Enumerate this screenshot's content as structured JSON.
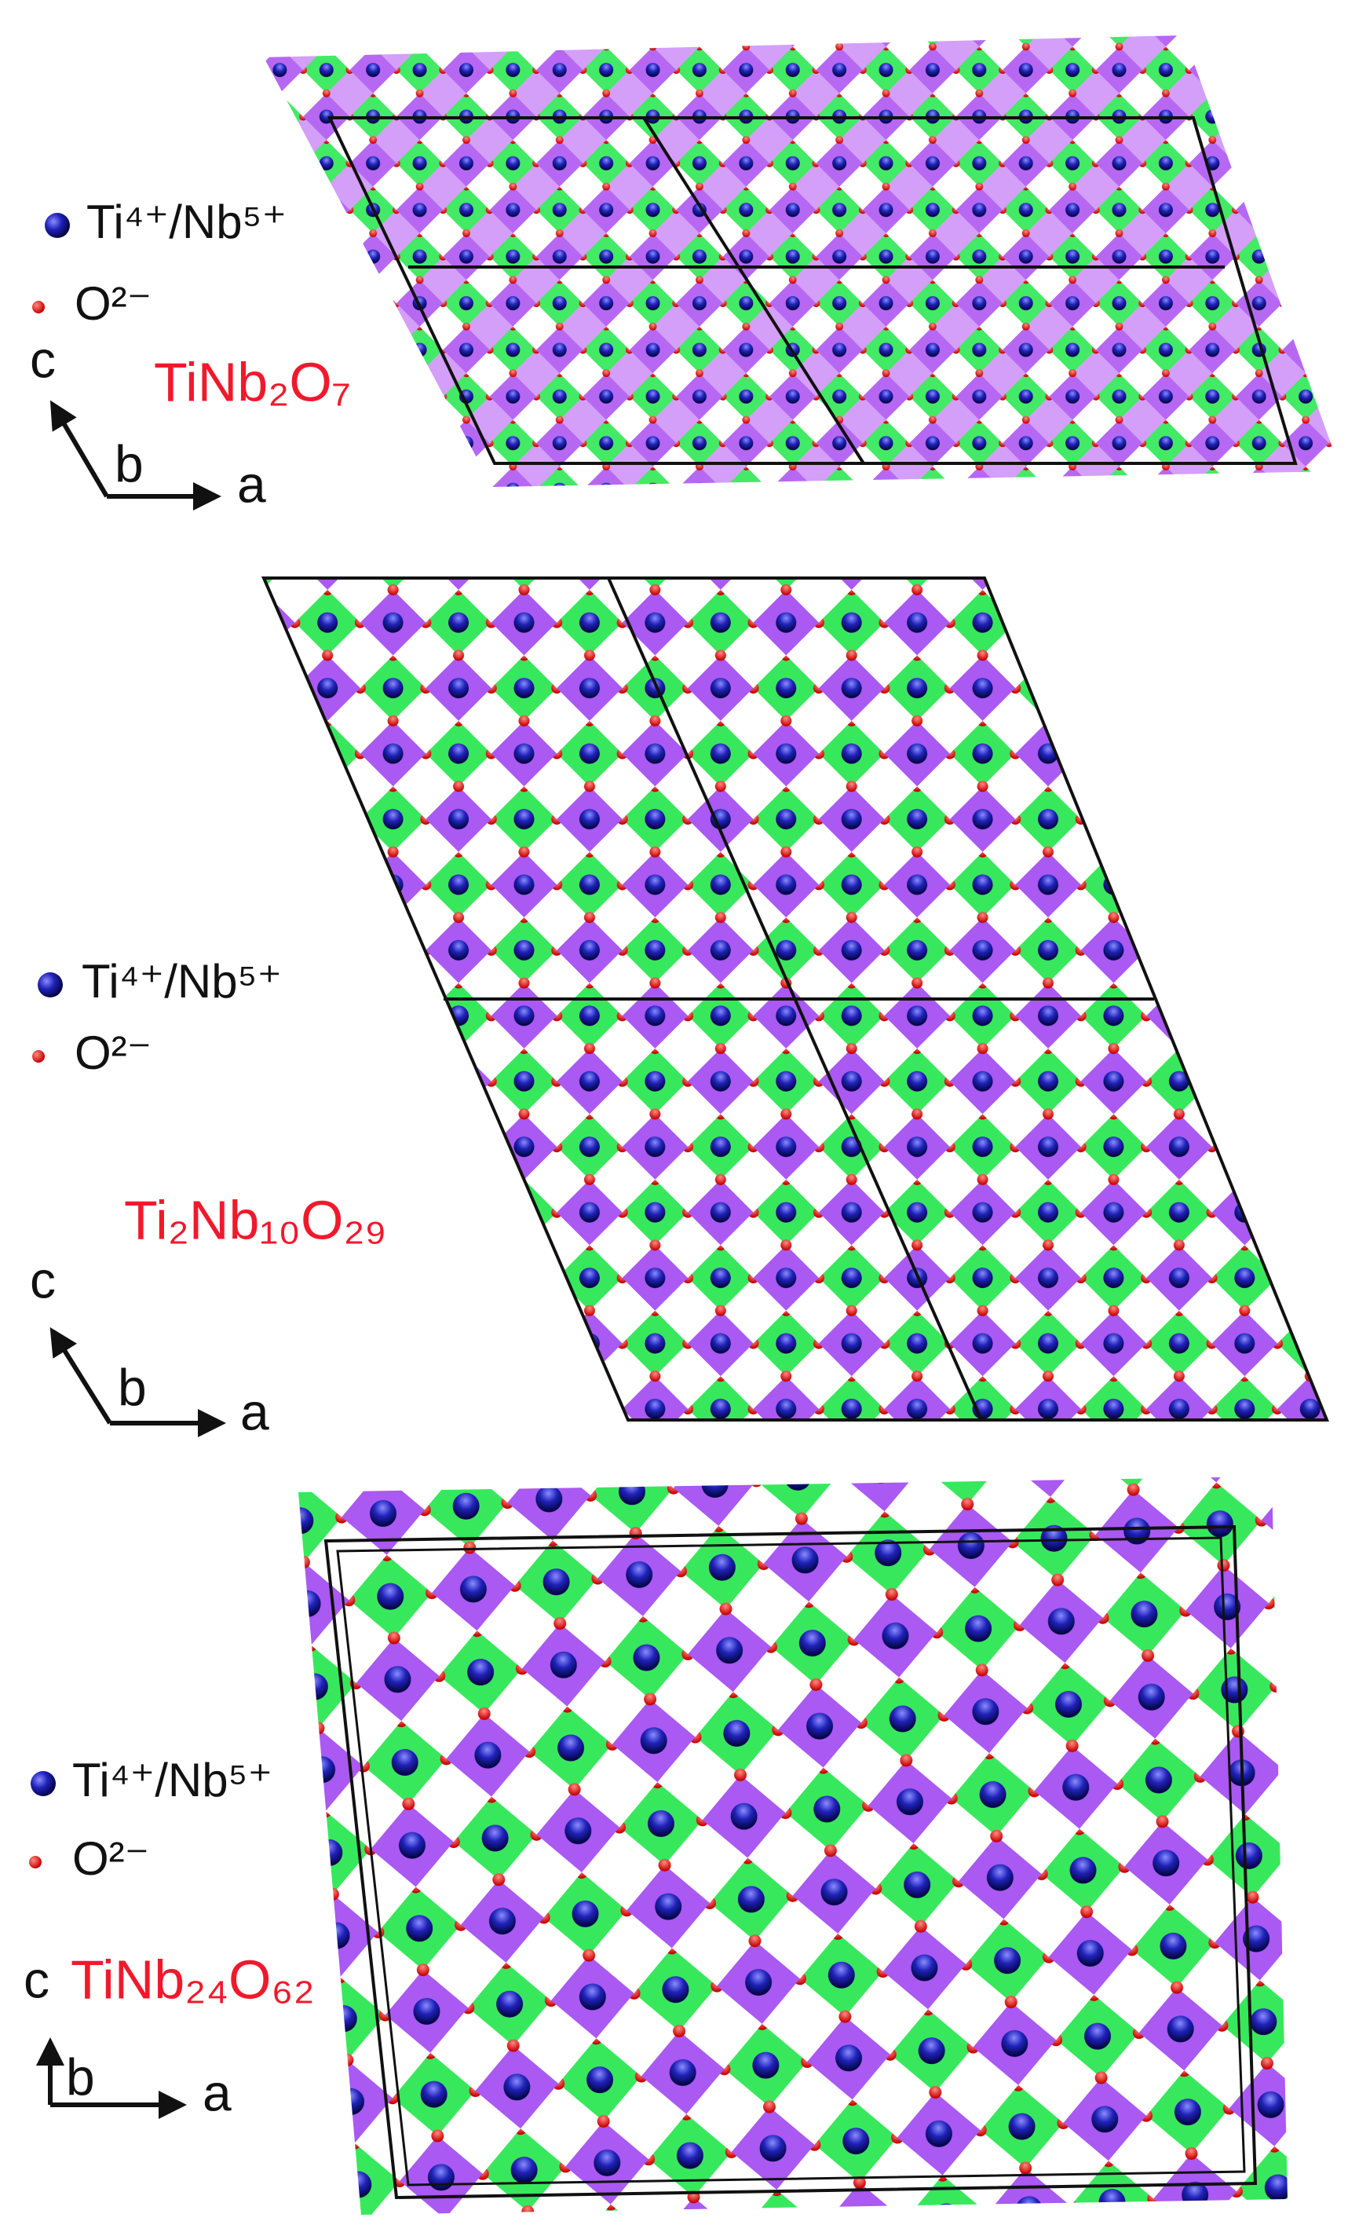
{
  "panels": [
    {
      "legend": [
        "Ti⁴⁺/Nb⁵⁺",
        "O²⁻"
      ],
      "formula": "TiNb₂O₇",
      "axes": {
        "c": "c",
        "b": "b",
        "a": "a"
      }
    },
    {
      "legend": [
        "Ti⁴⁺/Nb⁵⁺",
        "O²⁻"
      ],
      "formula": "Ti₂Nb₁₀O₂₉",
      "axes": {
        "c": "c",
        "b": "b",
        "a": "a"
      }
    },
    {
      "legend": [
        "Ti⁴⁺/Nb⁵⁺",
        "O²⁻"
      ],
      "formula": "TiNb₂₄O₆₂",
      "axes": {
        "c": "c",
        "b": "b",
        "a": "a"
      }
    }
  ]
}
